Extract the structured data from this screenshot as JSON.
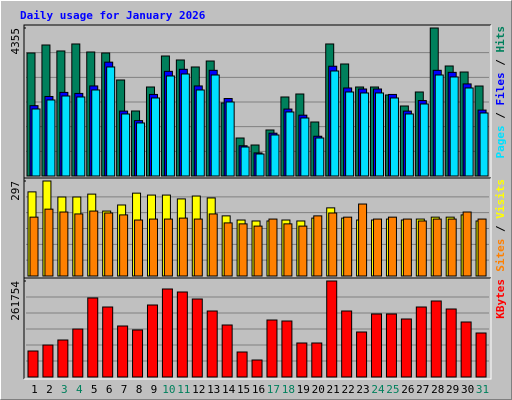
{
  "chart_data": [
    {
      "type": "bar",
      "title": "Daily usage for January 2026",
      "title_color": "#0000ff",
      "separator": " / ",
      "ylim": [
        0,
        4355
      ],
      "yticks": [
        4355
      ],
      "series": [
        {
          "name": "Hits",
          "color": "#00805c",
          "values": [
            3620,
            3855,
            3679,
            3885,
            3649,
            3620,
            2825,
            1913,
            2619,
            3531,
            3414,
            3208,
            3384,
            2148,
            1118,
            912,
            1354,
            2325,
            2413,
            1589,
            3885,
            3296,
            2619,
            2619,
            2384,
            2060,
            2472,
            4355,
            3237,
            3060,
            2648
          ]
        },
        {
          "name": "Files",
          "color": "#0000ff",
          "values": [
            2070,
            2340,
            2460,
            2430,
            2650,
            3350,
            1910,
            1630,
            2400,
            3080,
            3140,
            2650,
            3110,
            2280,
            890,
            680,
            1260,
            1970,
            1790,
            1170,
            3230,
            2590,
            2560,
            2560,
            2400,
            1910,
            2220,
            3110,
            3050,
            2710,
            1940
          ]
        },
        {
          "name": "Pages",
          "color": "#00e0ff",
          "values": [
            1972,
            2237,
            2354,
            2325,
            2531,
            3208,
            1825,
            1560,
            2296,
            2943,
            3002,
            2531,
            2972,
            2178,
            853,
            647,
            1207,
            1884,
            1707,
            1118,
            3090,
            2472,
            2443,
            2443,
            2296,
            1825,
            2119,
            2972,
            2914,
            2590,
            1854
          ]
        }
      ]
    },
    {
      "type": "bar",
      "separator": " / ",
      "ylim": [
        0,
        297
      ],
      "yticks": [
        297
      ],
      "series": [
        {
          "name": "Visits",
          "color": "#ffff00",
          "values": [
            263,
            297,
            247,
            247,
            256,
            203,
            222,
            259,
            253,
            253,
            241,
            250,
            244,
            188,
            175,
            172,
            172,
            175,
            172,
            181,
            213,
            181,
            175,
            175,
            178,
            175,
            178,
            184,
            184,
            191,
            172
          ]
        },
        {
          "name": "Sites",
          "color": "#ff8000",
          "values": [
            184,
            209,
            200,
            194,
            203,
            197,
            191,
            175,
            178,
            178,
            181,
            178,
            194,
            166,
            163,
            156,
            178,
            163,
            156,
            188,
            197,
            184,
            225,
            178,
            184,
            178,
            172,
            178,
            178,
            200,
            178
          ]
        }
      ]
    },
    {
      "type": "bar",
      "ylim": [
        0,
        261754
      ],
      "yticks": [
        261754
      ],
      "categories": [
        "1",
        "2",
        "3",
        "4",
        "5",
        "6",
        "7",
        "8",
        "9",
        "10",
        "11",
        "12",
        "13",
        "14",
        "15",
        "16",
        "17",
        "18",
        "19",
        "20",
        "21",
        "22",
        "23",
        "24",
        "25",
        "26",
        "27",
        "28",
        "29",
        "30",
        "31"
      ],
      "category_colors": [
        "#000000",
        "#000000",
        "#00805c",
        "#00805c",
        "#000000",
        "#000000",
        "#000000",
        "#000000",
        "#000000",
        "#00805c",
        "#00805c",
        "#000000",
        "#000000",
        "#000000",
        "#000000",
        "#000000",
        "#00805c",
        "#00805c",
        "#000000",
        "#000000",
        "#000000",
        "#000000",
        "#000000",
        "#00805c",
        "#00805c",
        "#000000",
        "#000000",
        "#000000",
        "#000000",
        "#000000",
        "#00805c"
      ],
      "series": [
        {
          "name": "KBytes",
          "color": "#ff0000",
          "values": [
            70890,
            87250,
            100890,
            130880,
            215410,
            190860,
            139060,
            128150,
            196320,
            239950,
            231770,
            212680,
            179960,
            141790,
            68170,
            46350,
            155420,
            152700,
            92710,
            92710,
            261754,
            179960,
            122700,
            171780,
            171780,
            158150,
            190860,
            207230,
            185410,
            149970,
            119970
          ]
        }
      ]
    }
  ]
}
